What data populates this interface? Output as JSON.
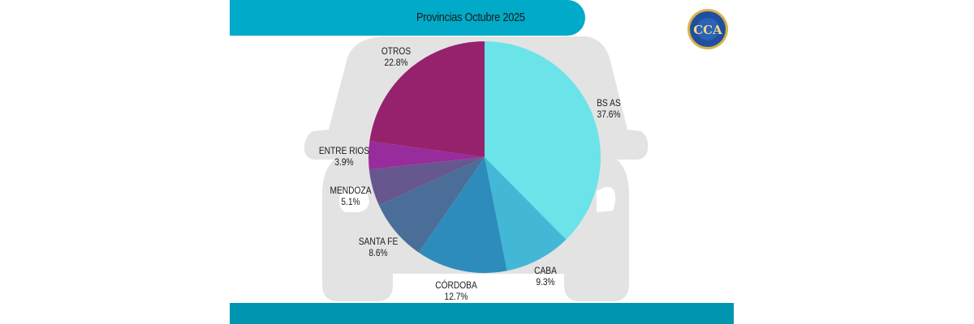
{
  "header": {
    "title": "Provincias Octubre 2025"
  },
  "logo": {
    "text": "CCA",
    "icon": "cca-logo-icon"
  },
  "colors": {
    "header": "#00aac8",
    "footer": "#0096b2",
    "car_silhouette": "#e3e3e3"
  },
  "chart_data": {
    "type": "pie",
    "title": "Provincias Octubre 2025",
    "categories": [
      "BS AS",
      "CABA",
      "CÓRDOBA",
      "SANTA FE",
      "MENDOZA",
      "ENTRE RIOS",
      "OTROS"
    ],
    "values": [
      37.6,
      9.3,
      12.7,
      8.6,
      5.1,
      3.9,
      22.8
    ],
    "labels": [
      "37.6%",
      "9.3%",
      "12.7%",
      "8.6%",
      "5.1%",
      "3.9%",
      "22.8%"
    ],
    "colors": [
      "#6ae4e8",
      "#42b8d6",
      "#2e8cbc",
      "#4a6e98",
      "#67578f",
      "#992c9c",
      "#96226e"
    ],
    "start_angle": "top",
    "direction": "clockwise",
    "legend": "none (direct labels)"
  },
  "labels": [
    {
      "name": "BS AS",
      "pct": "37.6%"
    },
    {
      "name": "CABA",
      "pct": "9.3%"
    },
    {
      "name": "CÓRDOBA",
      "pct": "12.7%"
    },
    {
      "name": "SANTA FE",
      "pct": "8.6%"
    },
    {
      "name": "MENDOZA",
      "pct": "5.1%"
    },
    {
      "name": "ENTRE RIOS",
      "pct": "3.9%"
    },
    {
      "name": "OTROS",
      "pct": "22.8%"
    }
  ]
}
